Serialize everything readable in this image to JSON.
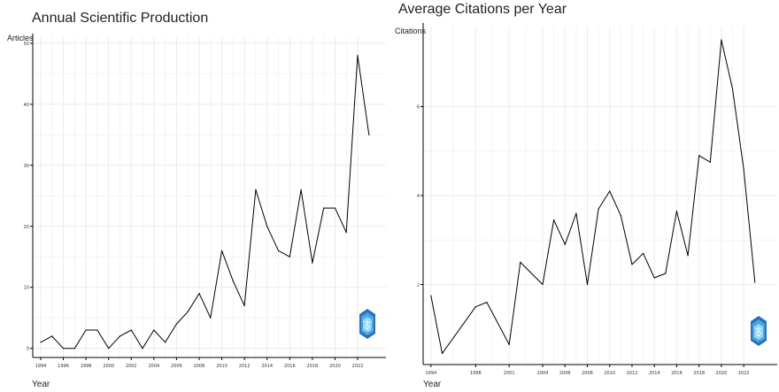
{
  "chart_data": [
    {
      "type": "line",
      "title": "Annual Scientific Production",
      "xlabel": "Year",
      "ylabel": "Articles",
      "x": [
        1994,
        1995,
        1996,
        1997,
        1998,
        1999,
        2000,
        2001,
        2002,
        2003,
        2004,
        2005,
        2006,
        2007,
        2008,
        2009,
        2010,
        2011,
        2012,
        2013,
        2014,
        2015,
        2016,
        2017,
        2018,
        2019,
        2020,
        2021,
        2022,
        2023
      ],
      "series": [
        {
          "values": [
            1,
            2,
            0,
            0,
            3,
            3,
            0,
            2,
            3,
            0,
            3,
            1,
            4,
            6,
            9,
            5,
            16,
            11,
            7,
            26,
            20,
            16,
            15,
            26,
            14,
            23,
            23,
            19,
            48,
            35
          ]
        }
      ],
      "xticks": [
        1994,
        1996,
        1998,
        2000,
        2002,
        2004,
        2006,
        2008,
        2010,
        2012,
        2014,
        2016,
        2018,
        2020,
        2022
      ],
      "xtick_labels": [
        "1994",
        "1996",
        "1998",
        "2000",
        "2002",
        "2004",
        "2006",
        "2008",
        "2010",
        "2012",
        "2014",
        "2016",
        "2018",
        "2020",
        "2022"
      ],
      "yticks": [
        0,
        10,
        20,
        30,
        40,
        50
      ],
      "ytick_labels": [
        "0",
        "10",
        "20",
        "30",
        "40",
        "50"
      ],
      "xlim": [
        1993.3,
        2024.5
      ],
      "ylim": [
        -1.5,
        51
      ],
      "grid": true,
      "line_color": "#000000"
    },
    {
      "type": "line",
      "title": "Average Citations per Year",
      "xlabel": "Year",
      "ylabel": "Citations",
      "x": [
        1994,
        1995,
        1998,
        1999,
        2001,
        2002,
        2004,
        2005,
        2006,
        2007,
        2008,
        2009,
        2010,
        2011,
        2012,
        2013,
        2014,
        2015,
        2016,
        2017,
        2018,
        2019,
        2020,
        2021,
        2022,
        2023
      ],
      "series": [
        {
          "values": [
            1.75,
            0.45,
            1.5,
            1.6,
            0.65,
            2.5,
            2.0,
            3.45,
            2.9,
            3.6,
            2.0,
            3.7,
            4.1,
            3.55,
            2.45,
            2.7,
            2.15,
            2.25,
            3.65,
            2.65,
            4.9,
            4.75,
            7.5,
            6.4,
            4.6,
            2.05
          ]
        }
      ],
      "xticks": [
        1994,
        1998,
        2001,
        2004,
        2006,
        2008,
        2010,
        2012,
        2014,
        2016,
        2018,
        2020,
        2022
      ],
      "xtick_labels": [
        "1994",
        "1998",
        "2001",
        "2004",
        "2006",
        "2008",
        "2010",
        "2012",
        "2014",
        "2016",
        "2018",
        "2020",
        "2022"
      ],
      "yticks": [
        2,
        4,
        6
      ],
      "ytick_labels": [
        "2",
        "4",
        "6"
      ],
      "xlim": [
        1993.3,
        2025
      ],
      "ylim": [
        0.2,
        7.8
      ],
      "grid": true,
      "line_color": "#000000"
    }
  ],
  "logo": {
    "name": "bibliometrix-logo-icon",
    "colors": [
      "#2e6fb8",
      "#46a8e0",
      "#8fd4f3"
    ]
  }
}
